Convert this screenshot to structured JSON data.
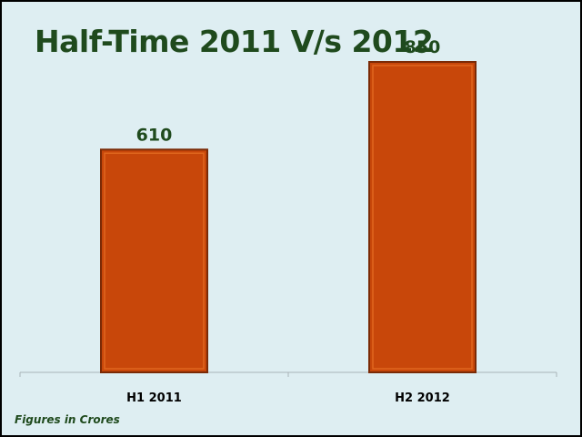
{
  "chart_data": {
    "type": "bar",
    "title": "Half-Time 2011 V/s 2012",
    "categories": [
      "H1 2011",
      "H2 2012"
    ],
    "values": [
      610,
      850
    ],
    "data_labels": [
      "610",
      "850"
    ],
    "xlabel": "",
    "ylabel": "",
    "ylim": [
      0,
      950
    ],
    "grid": false,
    "legend": "none",
    "footnote": "Figures in Crores",
    "colors": {
      "bar_fill": "#c8470a",
      "bar_border": "#7a2a06",
      "bar_inner": "#e0671e",
      "background": "#deeef2",
      "title": "#1f4a1d",
      "axis": "#a8b4b8"
    }
  }
}
